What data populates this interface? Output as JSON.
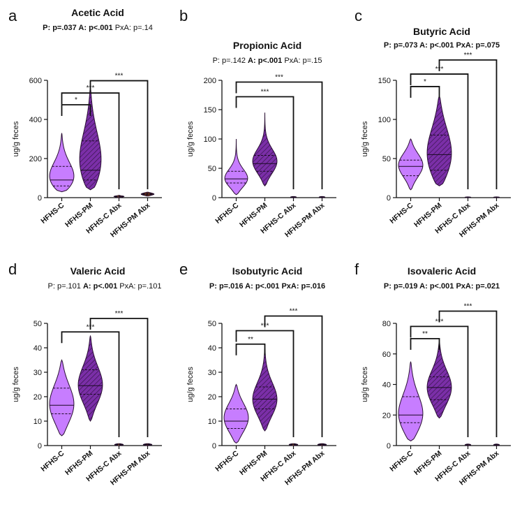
{
  "chart_data": [
    {
      "panel": "a",
      "type": "violin",
      "title": "Acetic Acid",
      "stats": [
        {
          "text": "P: p=.037 ",
          "bold": true
        },
        {
          "text": "A: p<.001 ",
          "bold": true
        },
        {
          "text": "PxA: p=.14",
          "bold": false
        }
      ],
      "ylabel": "ug/g feces",
      "ylim": [
        0,
        600
      ],
      "yticks": [
        0,
        200,
        400,
        600
      ],
      "categories": [
        "HFHS-C",
        "HFHS-PM",
        "HFHS-C Abx",
        "HFHS-PM Abx"
      ],
      "violins": [
        {
          "min": 30,
          "max": 330,
          "median": 90,
          "q1": 60,
          "q3": 160,
          "peak": 85,
          "width": 0.85,
          "color": "#c77dff",
          "hatch": false
        },
        {
          "min": 40,
          "max": 560,
          "median": 140,
          "q1": 90,
          "q3": 290,
          "peak": 150,
          "width": 0.75,
          "color": "#7b2fa8",
          "hatch": true
        },
        {
          "min": 0,
          "max": 12,
          "median": 6,
          "q1": 4,
          "q3": 8,
          "peak": 6,
          "width": 0.35,
          "color": "#f5a623",
          "hatch": false
        },
        {
          "min": 8,
          "max": 28,
          "median": 18,
          "q1": 14,
          "q3": 22,
          "peak": 18,
          "width": 0.45,
          "color": "#8b4513",
          "hatch": true
        }
      ],
      "brackets": [
        {
          "to": 1,
          "y": 475,
          "label": "*"
        },
        {
          "to": 2,
          "y": 535,
          "label": "***"
        },
        {
          "from": 1,
          "to": 3,
          "y": 598,
          "label": "***"
        }
      ]
    },
    {
      "panel": "b",
      "type": "violin",
      "title": "Propionic Acid",
      "stats": [
        {
          "text": "P: p=.142 ",
          "bold": false
        },
        {
          "text": "A: p<.001 ",
          "bold": true
        },
        {
          "text": "PxA: p=.15",
          "bold": false
        }
      ],
      "ylabel": "ug/g feces",
      "ylim": [
        0,
        200
      ],
      "yticks": [
        0,
        50,
        100,
        150,
        200
      ],
      "categories": [
        "HFHS-C",
        "HFHS-PM",
        "HFHS-C Abx",
        "HFHS-PM Abx"
      ],
      "violins": [
        {
          "min": 5,
          "max": 100,
          "median": 32,
          "q1": 25,
          "q3": 45,
          "peak": 30,
          "width": 0.8,
          "color": "#c77dff",
          "hatch": false
        },
        {
          "min": 20,
          "max": 145,
          "median": 58,
          "q1": 45,
          "q3": 72,
          "peak": 60,
          "width": 0.85,
          "color": "#7b2fa8",
          "hatch": true
        },
        {
          "min": 0,
          "max": 2,
          "median": 1,
          "q1": 0.5,
          "q3": 1.5,
          "peak": 1,
          "width": 0.2,
          "color": "#f5a623",
          "hatch": false
        },
        {
          "min": 0,
          "max": 2,
          "median": 1,
          "q1": 0.5,
          "q3": 1.5,
          "peak": 1,
          "width": 0.2,
          "color": "#8b4513",
          "hatch": true
        }
      ],
      "brackets": [
        {
          "to": 2,
          "y": 172,
          "label": "***"
        },
        {
          "to": 3,
          "y": 197,
          "label": "***"
        }
      ]
    },
    {
      "panel": "c",
      "type": "violin",
      "title": "Butyric Acid",
      "stats": [
        {
          "text": "P: p=.073 ",
          "bold": true
        },
        {
          "text": "A: p<.001 ",
          "bold": true
        },
        {
          "text": "PxA: p=.075",
          "bold": true
        }
      ],
      "ylabel": "ug/g feces",
      "ylim": [
        0,
        150
      ],
      "yticks": [
        0,
        50,
        100,
        150
      ],
      "categories": [
        "HFHS-C",
        "HFHS-PM",
        "HFHS-C Abx",
        "HFHS-PM Abx"
      ],
      "violins": [
        {
          "min": 10,
          "max": 75,
          "median": 40,
          "q1": 28,
          "q3": 48,
          "peak": 42,
          "width": 0.85,
          "color": "#c77dff",
          "hatch": false
        },
        {
          "min": 15,
          "max": 130,
          "median": 55,
          "q1": 35,
          "q3": 80,
          "peak": 50,
          "width": 0.85,
          "color": "#7b2fa8",
          "hatch": true
        },
        {
          "min": 0,
          "max": 1,
          "median": 0.5,
          "q1": 0.3,
          "q3": 0.7,
          "peak": 0.5,
          "width": 0.2,
          "color": "#f5a623",
          "hatch": false
        },
        {
          "min": 0,
          "max": 1,
          "median": 0.5,
          "q1": 0.3,
          "q3": 0.7,
          "peak": 0.5,
          "width": 0.2,
          "color": "#8b4513",
          "hatch": true
        }
      ],
      "brackets": [
        {
          "to": 1,
          "y": 142,
          "label": "*"
        },
        {
          "to": 2,
          "y": 158,
          "label": "***"
        },
        {
          "from": 1,
          "to": 3,
          "y": 176,
          "label": "***"
        }
      ]
    },
    {
      "panel": "d",
      "type": "violin",
      "title": "Valeric Acid",
      "stats": [
        {
          "text": "P: p=.101 ",
          "bold": false
        },
        {
          "text": "A: p<.001 ",
          "bold": true
        },
        {
          "text": "PxA: p=.101",
          "bold": false
        }
      ],
      "ylabel": "ug/g feces",
      "ylim": [
        0,
        50
      ],
      "yticks": [
        0,
        10,
        20,
        30,
        40,
        50
      ],
      "categories": [
        "HFHS-C",
        "HFHS-PM",
        "HFHS-C Abx",
        "HFHS-PM Abx"
      ],
      "violins": [
        {
          "min": 4,
          "max": 35,
          "median": 16.5,
          "q1": 13,
          "q3": 23.5,
          "peak": 16,
          "width": 0.85,
          "color": "#c77dff",
          "hatch": false
        },
        {
          "min": 10,
          "max": 45,
          "median": 24.5,
          "q1": 21,
          "q3": 31,
          "peak": 24,
          "width": 0.85,
          "color": "#7b2fa8",
          "hatch": true
        },
        {
          "min": 0,
          "max": 0.8,
          "median": 0.4,
          "q1": 0.2,
          "q3": 0.6,
          "peak": 0.4,
          "width": 0.3,
          "color": "#f5a623",
          "hatch": false
        },
        {
          "min": 0,
          "max": 0.8,
          "median": 0.4,
          "q1": 0.2,
          "q3": 0.6,
          "peak": 0.4,
          "width": 0.3,
          "color": "#8b4513",
          "hatch": true
        }
      ],
      "brackets": [
        {
          "to": 2,
          "y": 46.5,
          "label": "***"
        },
        {
          "from": 1,
          "to": 3,
          "y": 52,
          "label": "***"
        }
      ]
    },
    {
      "panel": "e",
      "type": "violin",
      "title": "Isobutyric Acid",
      "stats": [
        {
          "text": "P: p=.016 ",
          "bold": true
        },
        {
          "text": "A: p<.001 ",
          "bold": true
        },
        {
          "text": "PxA: p=.016",
          "bold": true
        }
      ],
      "ylabel": "ug/g feces",
      "ylim": [
        0,
        50
      ],
      "yticks": [
        0,
        10,
        20,
        30,
        40,
        50
      ],
      "categories": [
        "HFHS-C",
        "HFHS-PM",
        "HFHS-C Abx",
        "HFHS-PM Abx"
      ],
      "violins": [
        {
          "min": 1,
          "max": 25,
          "median": 10,
          "q1": 7,
          "q3": 15,
          "peak": 11,
          "width": 0.85,
          "color": "#c77dff",
          "hatch": false
        },
        {
          "min": 6,
          "max": 40,
          "median": 19,
          "q1": 15,
          "q3": 24,
          "peak": 18,
          "width": 0.85,
          "color": "#7b2fa8",
          "hatch": true
        },
        {
          "min": 0,
          "max": 0.8,
          "median": 0.4,
          "q1": 0.2,
          "q3": 0.6,
          "peak": 0.4,
          "width": 0.3,
          "color": "#f5a623",
          "hatch": false
        },
        {
          "min": 0,
          "max": 0.8,
          "median": 0.4,
          "q1": 0.2,
          "q3": 0.6,
          "peak": 0.4,
          "width": 0.3,
          "color": "#8b4513",
          "hatch": true
        }
      ],
      "brackets": [
        {
          "to": 1,
          "y": 41.5,
          "label": "**"
        },
        {
          "to": 2,
          "y": 47,
          "label": "***"
        },
        {
          "from": 1,
          "to": 3,
          "y": 53,
          "label": "***"
        }
      ]
    },
    {
      "panel": "f",
      "type": "violin",
      "title": "Isovaleric Acid",
      "stats": [
        {
          "text": "P: p=.019 ",
          "bold": true
        },
        {
          "text": "A: p<.001 ",
          "bold": true
        },
        {
          "text": "PxA: p=.021",
          "bold": true
        }
      ],
      "ylabel": "ug/g feces",
      "ylim": [
        0,
        80
      ],
      "yticks": [
        0,
        20,
        40,
        60,
        80
      ],
      "categories": [
        "HFHS-C",
        "HFHS-PM",
        "HFHS-C Abx",
        "HFHS-PM Abx"
      ],
      "violins": [
        {
          "min": 3,
          "max": 55,
          "median": 20,
          "q1": 15,
          "q3": 32,
          "peak": 18,
          "width": 0.85,
          "color": "#c77dff",
          "hatch": false
        },
        {
          "min": 18,
          "max": 68,
          "median": 38,
          "q1": 30,
          "q3": 45,
          "peak": 37,
          "width": 0.85,
          "color": "#7b2fa8",
          "hatch": true
        },
        {
          "min": 0,
          "max": 1,
          "median": 0.5,
          "q1": 0.2,
          "q3": 0.8,
          "peak": 0.5,
          "width": 0.2,
          "color": "#f5a623",
          "hatch": false
        },
        {
          "min": 0,
          "max": 1,
          "median": 0.5,
          "q1": 0.2,
          "q3": 0.8,
          "peak": 0.5,
          "width": 0.2,
          "color": "#8b4513",
          "hatch": true
        }
      ],
      "brackets": [
        {
          "to": 1,
          "y": 70,
          "label": "**"
        },
        {
          "to": 2,
          "y": 78,
          "label": "***"
        },
        {
          "from": 1,
          "to": 3,
          "y": 88,
          "label": "***"
        }
      ]
    }
  ]
}
